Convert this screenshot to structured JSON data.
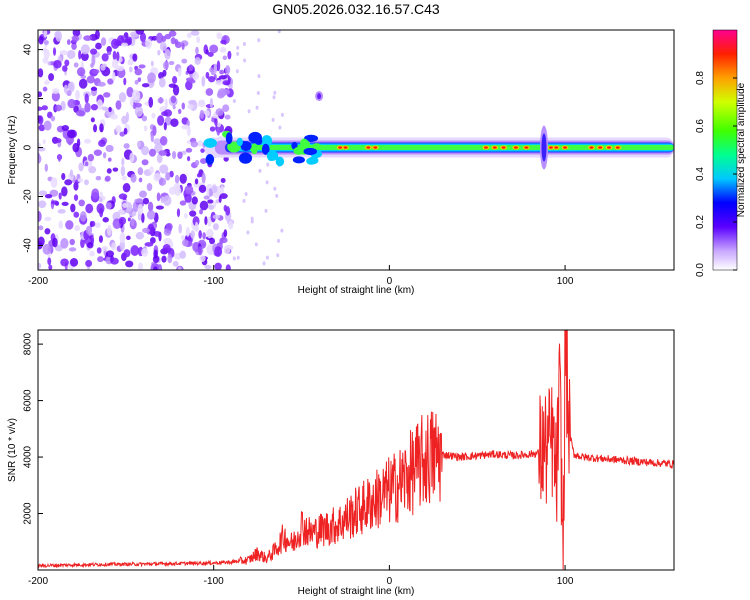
{
  "title": "GN05.2026.032.16.57.C43",
  "chart_data": [
    {
      "type": "heatmap",
      "panel": "spectrogram",
      "xlabel": "Height of straight line (km)",
      "ylabel": "Frequency (Hz)",
      "xlim": [
        -200,
        162
      ],
      "ylim": [
        -50,
        48
      ],
      "xticks": [
        -200,
        -100,
        0,
        100
      ],
      "yticks": [
        -40,
        -20,
        0,
        20,
        40
      ],
      "colorbar": {
        "label": "Normalized spectral amplitude",
        "range": [
          0,
          1
        ],
        "ticks": [
          0.0,
          0.2,
          0.4,
          0.6,
          0.8
        ],
        "tick_labels": [
          "0.0",
          "0.2",
          "0.4",
          "0.6",
          "0.8"
        ]
      },
      "features": {
        "noise_region_x": [
          -200,
          -90
        ],
        "signal_band_x": [
          -105,
          162
        ],
        "signal_center_hz": 0,
        "burst_near_x": -40,
        "burst_hz": 21,
        "spread_near_x": 88
      }
    },
    {
      "type": "line",
      "panel": "snr",
      "xlabel": "Height of straight line (km)",
      "ylabel": "SNR (10 * v/v)",
      "xlim": [
        -200,
        162
      ],
      "ylim": [
        0,
        8500
      ],
      "xticks": [
        -200,
        -100,
        0,
        100
      ],
      "yticks": [
        2000,
        4000,
        6000,
        8000
      ],
      "series": [
        {
          "name": "SNR",
          "color": "#ee2222",
          "x": [
            -200,
            -180,
            -160,
            -140,
            -120,
            -100,
            -90,
            -80,
            -75,
            -70,
            -65,
            -60,
            -55,
            -50,
            -45,
            -40,
            -35,
            -30,
            -25,
            -20,
            -15,
            -10,
            -5,
            0,
            5,
            10,
            15,
            20,
            25,
            30,
            35,
            40,
            50,
            60,
            70,
            80,
            85,
            90,
            93,
            95,
            97,
            99,
            100,
            102,
            105,
            110,
            120,
            130,
            140,
            150,
            162
          ],
          "y": [
            150,
            180,
            200,
            210,
            230,
            250,
            280,
            350,
            600,
            400,
            700,
            1200,
            900,
            1600,
            1300,
            1400,
            1500,
            1600,
            1800,
            2000,
            2200,
            2400,
            2600,
            2800,
            3000,
            3300,
            3600,
            3900,
            4050,
            4100,
            4050,
            4000,
            4050,
            4100,
            4050,
            4100,
            4150,
            4300,
            4600,
            3000,
            6500,
            200,
            8400,
            5000,
            4100,
            4000,
            3950,
            3900,
            3850,
            3800,
            3750
          ]
        }
      ]
    }
  ]
}
